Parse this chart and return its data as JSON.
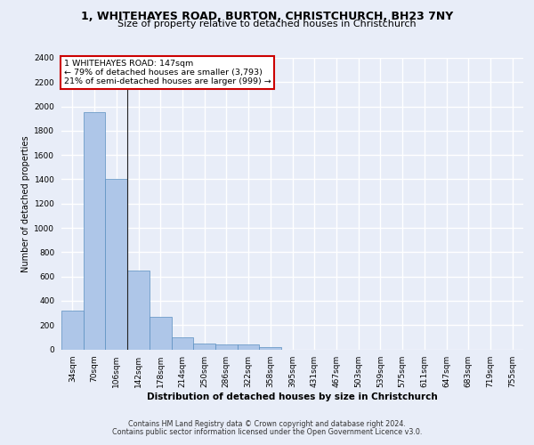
{
  "title_line1": "1, WHITEHAYES ROAD, BURTON, CHRISTCHURCH, BH23 7NY",
  "title_line2": "Size of property relative to detached houses in Christchurch",
  "xlabel": "Distribution of detached houses by size in Christchurch",
  "ylabel": "Number of detached properties",
  "footer_line1": "Contains HM Land Registry data © Crown copyright and database right 2024.",
  "footer_line2": "Contains public sector information licensed under the Open Government Licence v3.0.",
  "categories": [
    "34sqm",
    "70sqm",
    "106sqm",
    "142sqm",
    "178sqm",
    "214sqm",
    "250sqm",
    "286sqm",
    "322sqm",
    "358sqm",
    "395sqm",
    "431sqm",
    "467sqm",
    "503sqm",
    "539sqm",
    "575sqm",
    "611sqm",
    "647sqm",
    "683sqm",
    "719sqm",
    "755sqm"
  ],
  "bar_values": [
    320,
    1950,
    1400,
    645,
    270,
    100,
    47,
    42,
    38,
    20,
    0,
    0,
    0,
    0,
    0,
    0,
    0,
    0,
    0,
    0,
    0
  ],
  "bar_color": "#aec6e8",
  "bar_edge_color": "#5a8fc0",
  "annotation_line1": "1 WHITEHAYES ROAD: 147sqm",
  "annotation_line2": "← 79% of detached houses are smaller (3,793)",
  "annotation_line3": "21% of semi-detached houses are larger (999) →",
  "annotation_box_facecolor": "#ffffff",
  "annotation_box_edgecolor": "#cc0000",
  "subject_vline_x": 2.5,
  "ylim": [
    0,
    2400
  ],
  "yticks": [
    0,
    200,
    400,
    600,
    800,
    1000,
    1200,
    1400,
    1600,
    1800,
    2000,
    2200,
    2400
  ],
  "background_color": "#e8edf8",
  "grid_color": "#ffffff",
  "title_fontsize": 9,
  "subtitle_fontsize": 8,
  "ylabel_fontsize": 7,
  "xlabel_fontsize": 7.5,
  "tick_fontsize": 6.5,
  "footer_fontsize": 5.8,
  "annot_fontsize": 6.8
}
